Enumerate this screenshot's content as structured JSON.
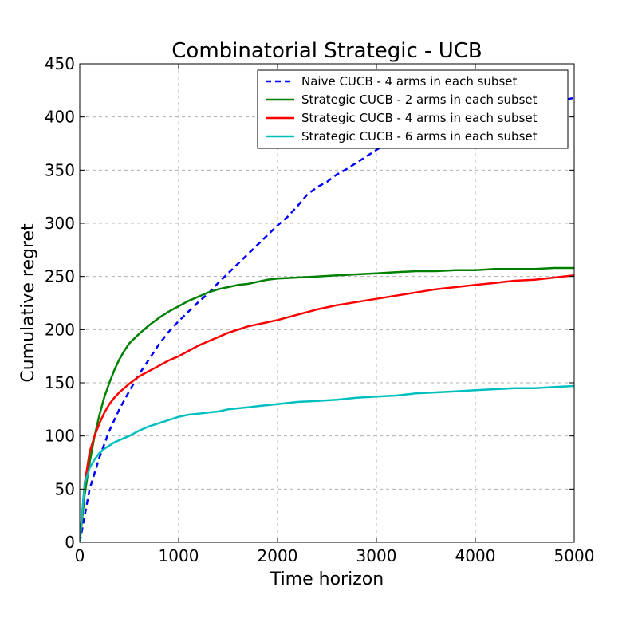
{
  "chart_data": {
    "type": "line",
    "title": "Combinatorial Strategic - UCB",
    "xlabel": "Time horizon",
    "ylabel": "Cumulative regret",
    "xlim": [
      0,
      5000
    ],
    "ylim": [
      0,
      450
    ],
    "xticks": [
      "0",
      "1000",
      "2000",
      "3000",
      "4000",
      "5000"
    ],
    "yticks": [
      "0",
      "50",
      "100",
      "150",
      "200",
      "250",
      "300",
      "350",
      "400",
      "450"
    ],
    "grid": true,
    "legend_position": "top-right",
    "series": [
      {
        "name": "Naive CUCB - 4 arms in each subset",
        "color": "#0000ff",
        "style": "dashed",
        "x": [
          0,
          100,
          200,
          300,
          400,
          500,
          600,
          700,
          800,
          900,
          1000,
          1100,
          1200,
          1300,
          1400,
          1500,
          1600,
          1700,
          1800,
          1900,
          2000,
          2100,
          2200,
          2300,
          2400,
          2500,
          2600,
          2700,
          2800,
          2900,
          3000,
          3100,
          3200,
          3300,
          3400,
          3500,
          3600,
          3700,
          3800,
          3900,
          4000,
          4100,
          4200,
          4300,
          4400,
          4500,
          4600,
          4700,
          4800,
          4900,
          5000
        ],
        "y": [
          0,
          50,
          80,
          105,
          125,
          142,
          158,
          172,
          186,
          198,
          208,
          217,
          226,
          234,
          244,
          253,
          262,
          271,
          280,
          289,
          298,
          306,
          316,
          327,
          334,
          339,
          346,
          351,
          357,
          363,
          369,
          375,
          380,
          384,
          388,
          391,
          394,
          397,
          399,
          401,
          403,
          405,
          407,
          409,
          411,
          412,
          413,
          414,
          415,
          416,
          418
        ]
      },
      {
        "name": "Strategic CUCB - 2 arms in each subset",
        "color": "#008000",
        "style": "solid",
        "x": [
          0,
          50,
          100,
          150,
          200,
          250,
          300,
          350,
          400,
          450,
          500,
          600,
          700,
          800,
          900,
          1000,
          1100,
          1200,
          1300,
          1400,
          1500,
          1600,
          1700,
          1800,
          1900,
          2000,
          2200,
          2400,
          2600,
          2800,
          3000,
          3200,
          3400,
          3600,
          3800,
          4000,
          4200,
          4400,
          4600,
          4800,
          5000
        ],
        "y": [
          0,
          45,
          75,
          100,
          120,
          137,
          150,
          162,
          172,
          180,
          187,
          196,
          204,
          211,
          217,
          222,
          227,
          231,
          235,
          238,
          240,
          242,
          243,
          245,
          247,
          248,
          249,
          250,
          251,
          252,
          253,
          254,
          255,
          255,
          256,
          256,
          257,
          257,
          257,
          258,
          258
        ]
      },
      {
        "name": "Strategic CUCB - 4 arms in each subset",
        "color": "#ff0000",
        "style": "solid",
        "x": [
          0,
          50,
          100,
          150,
          200,
          250,
          300,
          350,
          400,
          450,
          500,
          600,
          700,
          800,
          900,
          1000,
          1100,
          1200,
          1300,
          1400,
          1500,
          1600,
          1700,
          1800,
          1900,
          2000,
          2200,
          2400,
          2600,
          2800,
          3000,
          3200,
          3400,
          3600,
          3800,
          4000,
          4200,
          4400,
          4600,
          4800,
          5000
        ],
        "y": [
          0,
          55,
          85,
          100,
          112,
          122,
          130,
          136,
          141,
          145,
          149,
          156,
          161,
          166,
          171,
          175,
          180,
          185,
          189,
          193,
          197,
          200,
          203,
          205,
          207,
          209,
          214,
          219,
          223,
          226,
          229,
          232,
          235,
          238,
          240,
          242,
          244,
          246,
          247,
          249,
          251
        ]
      },
      {
        "name": "Strategic CUCB - 6 arms in each subset",
        "color": "#00bfbf",
        "style": "solid",
        "x": [
          0,
          50,
          100,
          150,
          200,
          250,
          300,
          350,
          400,
          450,
          500,
          600,
          700,
          800,
          900,
          1000,
          1100,
          1200,
          1300,
          1400,
          1500,
          1600,
          1700,
          1800,
          1900,
          2000,
          2200,
          2400,
          2600,
          2800,
          3000,
          3200,
          3400,
          3600,
          3800,
          4000,
          4200,
          4400,
          4600,
          4800,
          5000
        ],
        "y": [
          0,
          55,
          70,
          78,
          84,
          88,
          91,
          94,
          96,
          98,
          100,
          105,
          109,
          112,
          115,
          118,
          120,
          121,
          122,
          123,
          125,
          126,
          127,
          128,
          129,
          130,
          132,
          133,
          134,
          136,
          137,
          138,
          140,
          141,
          142,
          143,
          144,
          145,
          145,
          146,
          147
        ]
      }
    ]
  }
}
